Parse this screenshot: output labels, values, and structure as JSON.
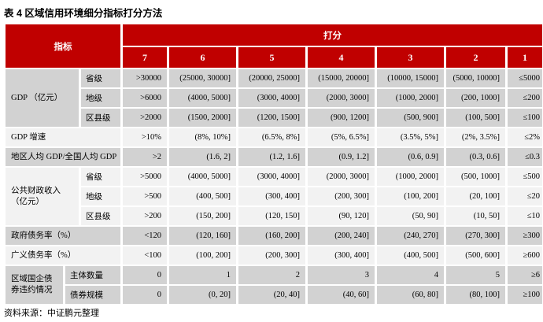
{
  "title": "表 4  区域信用环境细分指标打分方法",
  "source_note": "资料来源：中证鹏元整理",
  "colors": {
    "header_red": "#C00000",
    "header_text": "#FFFFFF",
    "row_gray": "#D2D2D2",
    "row_light": "#F2F2F2"
  },
  "table": {
    "header": {
      "indicator_label": "指标",
      "score_label": "打分",
      "score_columns": [
        "7",
        "6",
        "5",
        "4",
        "3",
        "2",
        "1"
      ]
    },
    "groups": [
      {
        "label": "GDP （亿元）",
        "shade": "gray",
        "wide_sub": false,
        "rows": [
          {
            "sub": "省级",
            "values": [
              ">30000",
              "(25000, 30000]",
              "(20000, 25000]",
              "(15000, 20000]",
              "(10000, 15000]",
              "(5000, 10000]",
              "≤5000"
            ]
          },
          {
            "sub": "地级",
            "values": [
              ">6000",
              "(4000, 5000]",
              "(3000, 4000]",
              "(2000, 3000]",
              "(1000, 2000]",
              "(200, 1000]",
              "≤200"
            ]
          },
          {
            "sub": "区县级",
            "values": [
              ">2000",
              "(1500, 2000]",
              "(1200, 1500]",
              "(900, 1200]",
              "(500, 900]",
              "(100, 500]",
              "≤100"
            ]
          }
        ]
      },
      {
        "label": "GDP 增速",
        "shade": "light",
        "wide_sub": false,
        "rows": [
          {
            "sub": null,
            "values": [
              ">10%",
              "(8%, 10%]",
              "(6.5%, 8%]",
              "(5%, 6.5%]",
              "(3.5%, 5%]",
              "(2%, 3.5%]",
              "≤2%"
            ]
          }
        ]
      },
      {
        "label": "地区人均 GDP/全国人均 GDP",
        "shade": "gray",
        "wide_sub": false,
        "rows": [
          {
            "sub": null,
            "values": [
              ">2",
              "(1.6, 2]",
              "(1.2, 1.6]",
              "(0.9, 1.2]",
              "(0.6, 0.9]",
              "(0.3, 0.6]",
              "≤0.3"
            ]
          }
        ]
      },
      {
        "label": "公共财政收入\n（亿元）",
        "shade": "light",
        "wide_sub": false,
        "rows": [
          {
            "sub": "省级",
            "values": [
              ">5000",
              "(4000, 5000]",
              "(3000, 4000]",
              "(2000, 3000]",
              "(1000, 2000]",
              "(500, 1000]",
              "≤500"
            ]
          },
          {
            "sub": "地级",
            "values": [
              ">500",
              "(400, 500]",
              "(300, 400]",
              "(200, 300]",
              "(100, 200]",
              "(20, 100]",
              "≤20"
            ]
          },
          {
            "sub": "区县级",
            "values": [
              ">200",
              "(150, 200]",
              "(120, 150]",
              "(90, 120]",
              "(50, 90]",
              "(10, 50]",
              "≤10"
            ]
          }
        ]
      },
      {
        "label": "政府债务率（%）",
        "shade": "gray",
        "wide_sub": false,
        "rows": [
          {
            "sub": null,
            "values": [
              "<120",
              "(120, 160]",
              "(160, 200]",
              "(200, 240]",
              "(240, 270]",
              "(270, 300]",
              "≥300"
            ]
          }
        ]
      },
      {
        "label": "广义债务率（%）",
        "shade": "light",
        "wide_sub": false,
        "rows": [
          {
            "sub": null,
            "values": [
              "<100",
              "(100, 200]",
              "(200, 300]",
              "(300, 400]",
              "(400, 500]",
              "(500, 600]",
              "≥600"
            ]
          }
        ]
      },
      {
        "label": "区域国企债\n券违约情况",
        "shade": "gray",
        "wide_sub": true,
        "rows": [
          {
            "sub": "主体数量",
            "values": [
              "0",
              "1",
              "2",
              "3",
              "4",
              "5",
              "≥6"
            ]
          },
          {
            "sub": "债券规模",
            "values": [
              "0",
              "(0, 20]",
              "(20, 40]",
              "(40, 60]",
              "(60, 80]",
              "(80, 100]",
              "≥100"
            ]
          }
        ]
      }
    ]
  }
}
